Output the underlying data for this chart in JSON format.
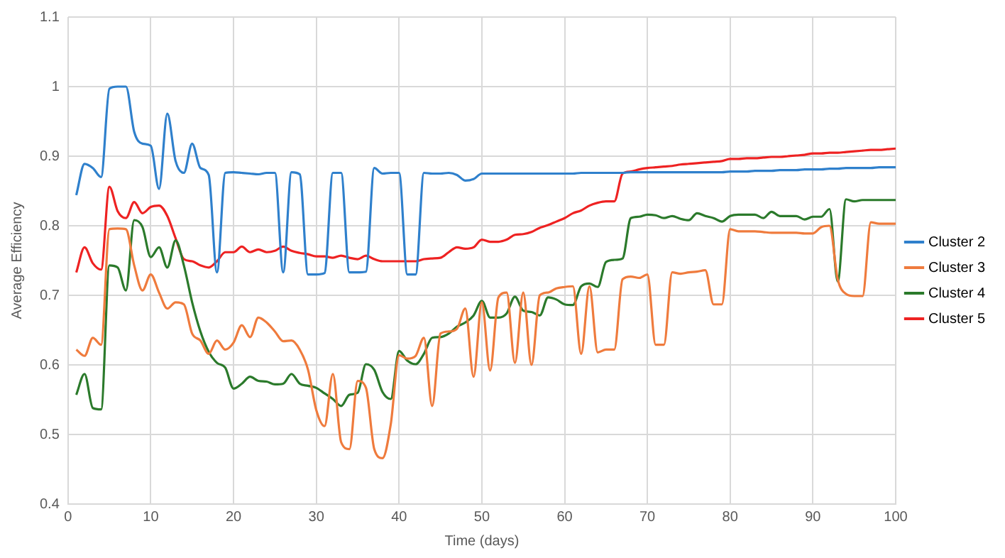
{
  "chart_data": {
    "type": "line",
    "xlabel": "Time (days)",
    "ylabel": "Average Efficiency",
    "x": [
      1,
      2,
      3,
      4,
      5,
      6,
      7,
      8,
      9,
      10,
      11,
      12,
      13,
      14,
      15,
      16,
      17,
      18,
      19,
      20,
      21,
      22,
      23,
      24,
      25,
      26,
      27,
      28,
      29,
      30,
      31,
      32,
      33,
      34,
      35,
      36,
      37,
      38,
      39,
      40,
      41,
      42,
      43,
      44,
      45,
      46,
      47,
      48,
      49,
      50,
      51,
      52,
      53,
      54,
      55,
      56,
      57,
      58,
      59,
      60,
      61,
      62,
      63,
      64,
      65,
      66,
      67,
      68,
      69,
      70,
      71,
      72,
      73,
      74,
      75,
      76,
      77,
      78,
      79,
      80,
      81,
      82,
      83,
      84,
      85,
      86,
      87,
      88,
      89,
      90,
      91,
      92,
      93,
      94,
      95,
      96,
      97,
      98,
      99,
      100
    ],
    "series": [
      {
        "name": "Cluster 2",
        "color": "#2f80cc",
        "values": [
          0.844,
          0.889,
          0.883,
          0.87,
          0.997,
          1.0,
          1.0,
          0.935,
          0.918,
          0.915,
          0.853,
          0.961,
          0.893,
          0.876,
          0.918,
          0.883,
          0.873,
          0.733,
          0.876,
          0.877,
          0.876,
          0.875,
          0.874,
          0.876,
          0.876,
          0.733,
          0.877,
          0.874,
          0.73,
          0.73,
          0.732,
          0.876,
          0.876,
          0.733,
          0.733,
          0.734,
          0.883,
          0.875,
          0.876,
          0.876,
          0.73,
          0.73,
          0.876,
          0.875,
          0.875,
          0.876,
          0.873,
          0.865,
          0.867,
          0.875,
          0.875,
          0.875,
          0.875,
          0.875,
          0.875,
          0.875,
          0.875,
          0.875,
          0.875,
          0.875,
          0.875,
          0.876,
          0.876,
          0.876,
          0.876,
          0.876,
          0.876,
          0.877,
          0.877,
          0.877,
          0.877,
          0.877,
          0.877,
          0.877,
          0.877,
          0.877,
          0.877,
          0.877,
          0.877,
          0.878,
          0.878,
          0.878,
          0.879,
          0.879,
          0.879,
          0.88,
          0.88,
          0.88,
          0.881,
          0.881,
          0.881,
          0.882,
          0.882,
          0.883,
          0.883,
          0.883,
          0.883,
          0.884,
          0.884,
          0.884
        ]
      },
      {
        "name": "Cluster 3",
        "color": "#ef7b3d",
        "values": [
          0.622,
          0.613,
          0.639,
          0.629,
          0.795,
          0.796,
          0.795,
          0.743,
          0.707,
          0.73,
          0.704,
          0.681,
          0.69,
          0.687,
          0.645,
          0.635,
          0.616,
          0.635,
          0.622,
          0.632,
          0.657,
          0.64,
          0.668,
          0.661,
          0.648,
          0.634,
          0.635,
          0.622,
          0.593,
          0.535,
          0.512,
          0.587,
          0.489,
          0.479,
          0.577,
          0.567,
          0.479,
          0.466,
          0.515,
          0.614,
          0.609,
          0.613,
          0.639,
          0.541,
          0.645,
          0.648,
          0.652,
          0.681,
          0.583,
          0.69,
          0.592,
          0.697,
          0.704,
          0.603,
          0.704,
          0.6,
          0.7,
          0.704,
          0.71,
          0.712,
          0.713,
          0.616,
          0.713,
          0.618,
          0.622,
          0.622,
          0.723,
          0.727,
          0.725,
          0.73,
          0.629,
          0.629,
          0.733,
          0.731,
          0.733,
          0.734,
          0.736,
          0.687,
          0.687,
          0.795,
          0.792,
          0.792,
          0.792,
          0.791,
          0.79,
          0.79,
          0.79,
          0.79,
          0.789,
          0.789,
          0.798,
          0.8,
          0.723,
          0.702,
          0.699,
          0.699,
          0.805,
          0.803,
          0.803,
          0.803
        ]
      },
      {
        "name": "Cluster 4",
        "color": "#2b7a2b",
        "values": [
          0.557,
          0.587,
          0.538,
          0.536,
          0.743,
          0.74,
          0.707,
          0.808,
          0.798,
          0.755,
          0.769,
          0.74,
          0.779,
          0.743,
          0.69,
          0.648,
          0.619,
          0.603,
          0.596,
          0.566,
          0.573,
          0.583,
          0.577,
          0.576,
          0.572,
          0.573,
          0.587,
          0.573,
          0.57,
          0.567,
          0.559,
          0.551,
          0.541,
          0.557,
          0.56,
          0.601,
          0.593,
          0.561,
          0.551,
          0.62,
          0.606,
          0.601,
          0.616,
          0.639,
          0.64,
          0.645,
          0.655,
          0.661,
          0.671,
          0.692,
          0.668,
          0.668,
          0.674,
          0.698,
          0.678,
          0.676,
          0.671,
          0.697,
          0.694,
          0.687,
          0.686,
          0.713,
          0.717,
          0.712,
          0.748,
          0.751,
          0.753,
          0.811,
          0.813,
          0.816,
          0.815,
          0.811,
          0.814,
          0.81,
          0.808,
          0.818,
          0.814,
          0.811,
          0.806,
          0.814,
          0.816,
          0.816,
          0.816,
          0.811,
          0.82,
          0.814,
          0.814,
          0.814,
          0.809,
          0.813,
          0.813,
          0.824,
          0.72,
          0.838,
          0.835,
          0.837,
          0.837,
          0.837,
          0.837,
          0.837
        ]
      },
      {
        "name": "Cluster 5",
        "color": "#ee2222",
        "values": [
          0.733,
          0.769,
          0.746,
          0.737,
          0.856,
          0.821,
          0.811,
          0.834,
          0.818,
          0.827,
          0.829,
          0.814,
          0.782,
          0.752,
          0.749,
          0.743,
          0.74,
          0.749,
          0.762,
          0.762,
          0.77,
          0.762,
          0.766,
          0.762,
          0.764,
          0.77,
          0.764,
          0.761,
          0.759,
          0.756,
          0.756,
          0.754,
          0.757,
          0.754,
          0.752,
          0.757,
          0.752,
          0.749,
          0.749,
          0.749,
          0.749,
          0.749,
          0.752,
          0.753,
          0.754,
          0.762,
          0.769,
          0.767,
          0.769,
          0.78,
          0.777,
          0.777,
          0.78,
          0.787,
          0.788,
          0.791,
          0.797,
          0.801,
          0.806,
          0.811,
          0.818,
          0.822,
          0.829,
          0.833,
          0.835,
          0.835,
          0.875,
          0.878,
          0.881,
          0.883,
          0.884,
          0.885,
          0.886,
          0.888,
          0.889,
          0.89,
          0.891,
          0.892,
          0.893,
          0.896,
          0.896,
          0.897,
          0.897,
          0.898,
          0.899,
          0.899,
          0.9,
          0.901,
          0.902,
          0.904,
          0.904,
          0.905,
          0.905,
          0.906,
          0.907,
          0.908,
          0.909,
          0.909,
          0.91,
          0.911
        ]
      }
    ],
    "xlim": [
      0,
      100
    ],
    "xticks": [
      0,
      10,
      20,
      30,
      40,
      50,
      60,
      70,
      80,
      90,
      100
    ],
    "ylim": [
      0.4,
      1.1
    ],
    "yticks": [
      0.4,
      0.5,
      0.6,
      0.7,
      0.8,
      0.9,
      1,
      1.1
    ],
    "grid": true,
    "legend": "right",
    "marker": "none",
    "line_style": "solid"
  }
}
